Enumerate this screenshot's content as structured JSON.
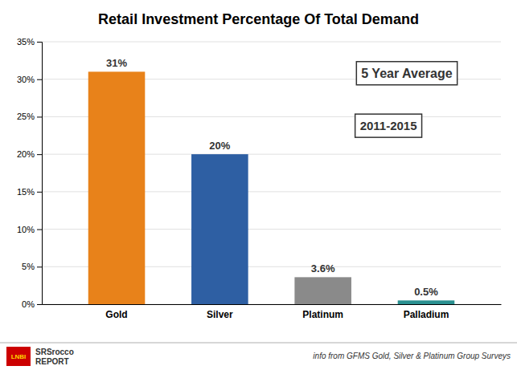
{
  "chart_data": {
    "type": "bar",
    "title": "Retail Investment Percentage Of Total Demand",
    "categories": [
      "Gold",
      "Silver",
      "Platinum",
      "Palladium"
    ],
    "values": [
      31,
      20,
      3.6,
      0.5
    ],
    "value_labels": [
      "31%",
      "20%",
      "3.6%",
      "0.5%"
    ],
    "data_labels": true,
    "colors": [
      "#E8821A",
      "#2E5FA3",
      "#8A8A8A",
      "#2A9090"
    ],
    "ylim": [
      0,
      35
    ],
    "yticks": [
      {
        "value": 0,
        "label": "0%"
      },
      {
        "value": 5,
        "label": "5%"
      },
      {
        "value": 10,
        "label": "10%"
      },
      {
        "value": 15,
        "label": "15%"
      },
      {
        "value": 20,
        "label": "20%"
      },
      {
        "value": 25,
        "label": "25%"
      },
      {
        "value": 30,
        "label": "30%"
      },
      {
        "value": 35,
        "label": "35%"
      }
    ],
    "grid": true,
    "annotations": [
      "5 Year Average",
      "2011-2015",
      "LNBI",
      "SRSrocco",
      "REPORT",
      "info from GFMS Gold, Silver & Platinum Group Surveys"
    ]
  }
}
